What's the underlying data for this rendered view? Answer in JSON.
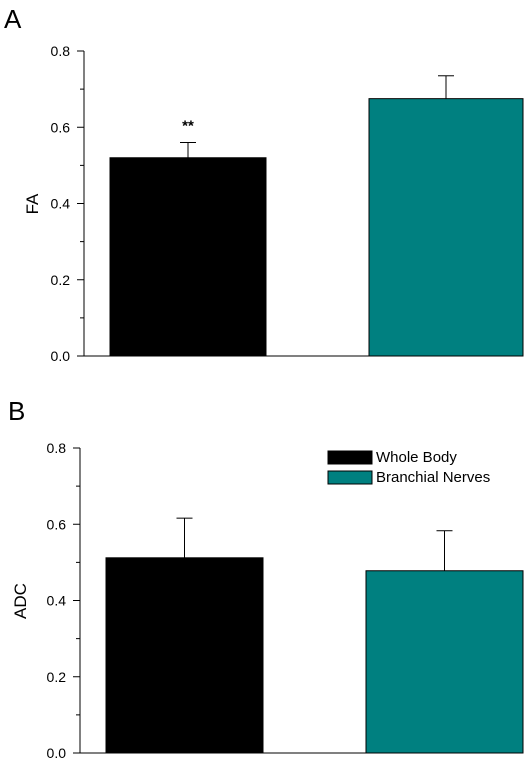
{
  "chart_data": [
    {
      "type": "bar",
      "panel_label": "A",
      "categories": [
        "Whole Body",
        "Branchial Nerves"
      ],
      "values": [
        0.52,
        0.675
      ],
      "errors": [
        0.04,
        0.06
      ],
      "colors": [
        "#000000",
        "#008080"
      ],
      "annotations": [
        "**",
        ""
      ],
      "title": "",
      "xlabel": "",
      "ylabel": "FA",
      "ylim": [
        0,
        0.8
      ],
      "yticks": [
        "0.0",
        "0.2",
        "0.4",
        "0.6",
        "0.8"
      ],
      "grid": false
    },
    {
      "type": "bar",
      "panel_label": "B",
      "categories": [
        "Whole Body",
        "Branchial Nerves"
      ],
      "values": [
        0.512,
        0.478
      ],
      "errors": [
        0.104,
        0.105
      ],
      "colors": [
        "#000000",
        "#008080"
      ],
      "annotations": [
        "",
        ""
      ],
      "title": "",
      "xlabel": "",
      "ylabel": "ADC",
      "ylim": [
        0,
        0.8
      ],
      "yticks": [
        "0.0",
        "0.2",
        "0.4",
        "0.6",
        "0.8"
      ],
      "grid": false,
      "legend": {
        "position": "top-right",
        "entries": [
          {
            "label": "Whole Body",
            "color": "#000000"
          },
          {
            "label": "Branchial Nerves",
            "color": "#008080"
          }
        ]
      }
    }
  ]
}
